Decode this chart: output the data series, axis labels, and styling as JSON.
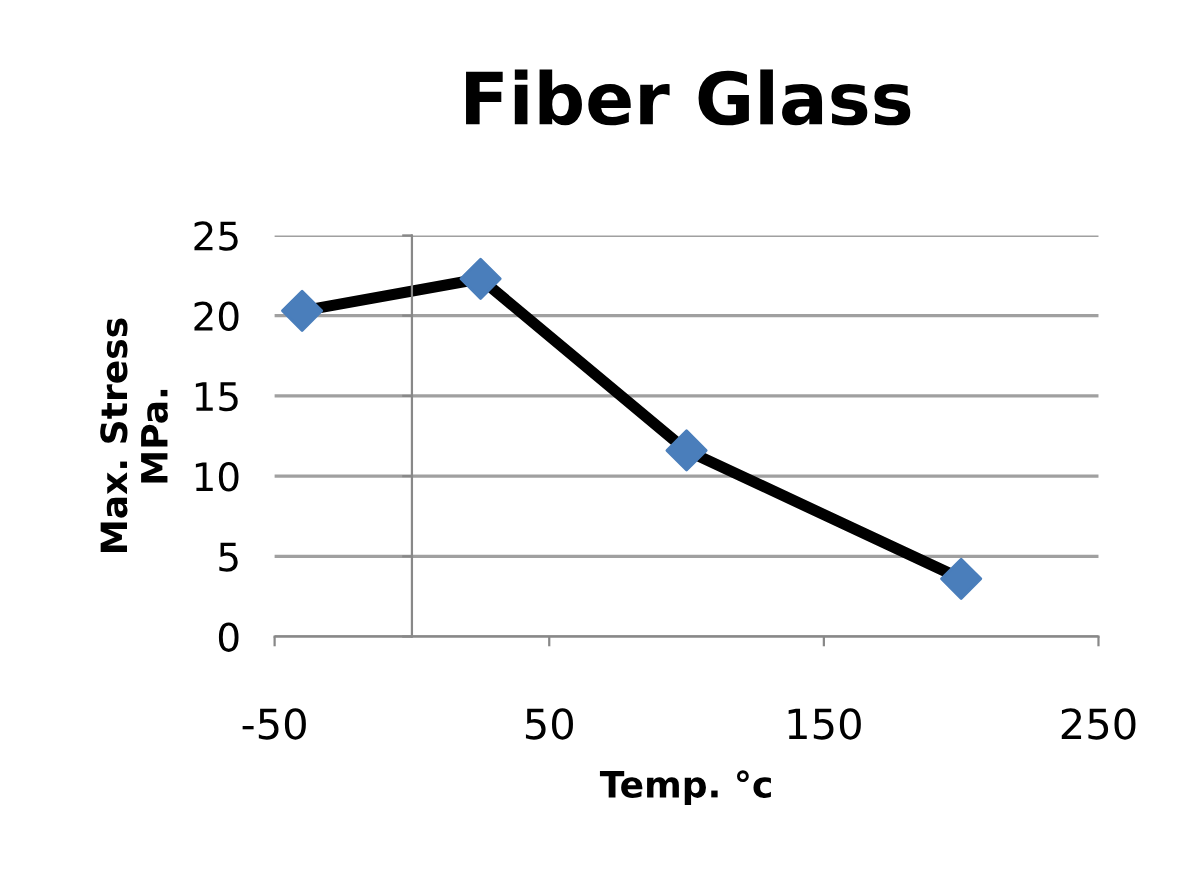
{
  "chart_data": {
    "type": "line",
    "title": "Fiber Glass",
    "xlabel": "Temp. °c",
    "ylabel": "Max. Stress\nMPa.",
    "x": [
      -40,
      25,
      100,
      200
    ],
    "series": [
      {
        "color": "#000000",
        "colors": [
          "#4a7ebb",
          "#4a7ebb",
          "#4a7ebb",
          "#4a7ebb"
        ],
        "values": [
          20.3,
          22.3,
          11.6,
          3.6
        ]
      }
    ],
    "marker": "diamond",
    "line_style": "solid",
    "xlim": [
      -50,
      250
    ],
    "xticks": [
      -50,
      50,
      150,
      250
    ],
    "ylim": [
      0,
      25
    ],
    "yticks": [
      0,
      5,
      10,
      15,
      20,
      25
    ],
    "grid": "y",
    "legend": false
  }
}
